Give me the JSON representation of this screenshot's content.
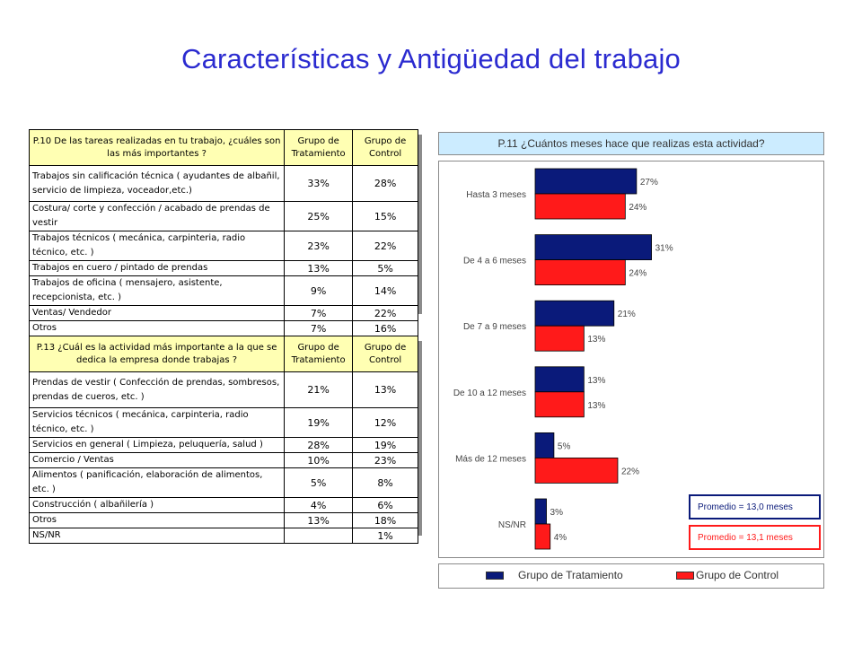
{
  "title": "Características y Antigüedad del trabajo",
  "table1": {
    "question": "P.10 De las tareas realizadas en tu trabajo, ¿cuáles son las más importantes ?",
    "col_tratamiento": "Grupo de Tratamiento",
    "col_control": "Grupo de Control",
    "rows": [
      {
        "label": "Trabajos sin calificación técnica ( ayudantes de albañil, servicio de limpieza, voceador,etc.)",
        "tratamiento": "33%",
        "control": "28%"
      },
      {
        "label": "Costura/ corte y confección / acabado de prendas de vestir",
        "tratamiento": "25%",
        "control": "15%"
      },
      {
        "label": "Trabajos técnicos ( mecánica, carpinteria, radio técnico, etc. )",
        "tratamiento": "23%",
        "control": "22%"
      },
      {
        "label": "Trabajos en cuero / pintado de prendas",
        "tratamiento": "13%",
        "control": "5%"
      },
      {
        "label": "Trabajos de oficina ( mensajero, asistente, recepcionista, etc. )",
        "tratamiento": "9%",
        "control": "14%"
      },
      {
        "label": "Ventas/ Vendedor",
        "tratamiento": "7%",
        "control": "22%"
      },
      {
        "label": "Otros",
        "tratamiento": "7%",
        "control": "16%"
      }
    ]
  },
  "table2": {
    "question": "P.13 ¿Cuál es la actividad más importante a la que se dedica la empresa donde trabajas ?",
    "col_tratamiento": "Grupo de Tratamiento",
    "col_control": "Grupo de Control",
    "rows": [
      {
        "label": "Prendas de vestir ( Confección de prendas, sombresos, prendas de cueros, etc. )",
        "tratamiento": "21%",
        "control": "13%"
      },
      {
        "label": "Servicios técnicos ( mecánica, carpinteria, radio técnico, etc. )",
        "tratamiento": "19%",
        "control": "12%"
      },
      {
        "label": "Servicios en general ( Limpieza, peluquería, salud )",
        "tratamiento": "28%",
        "control": "19%"
      },
      {
        "label": "Comercio / Ventas",
        "tratamiento": "10%",
        "control": "23%"
      },
      {
        "label": "Alimentos ( panificación, elaboración de alimentos, etc. )",
        "tratamiento": "5%",
        "control": "8%"
      },
      {
        "label": "Construcción ( albañilería )",
        "tratamiento": "4%",
        "control": "6%"
      },
      {
        "label": "Otros",
        "tratamiento": "13%",
        "control": "18%"
      },
      {
        "label": "NS/NR",
        "tratamiento": "",
        "control": "1%"
      }
    ]
  },
  "chart_data": {
    "type": "bar",
    "orientation": "horizontal",
    "title": "P.11 ¿Cuántos meses hace que realizas esta actividad?",
    "categories": [
      "Hasta 3 meses",
      "De 4 a 6 meses",
      "De 7 a 9 meses",
      "De 10 a 12 meses",
      "Más de 12 meses",
      "NS/NR"
    ],
    "series": [
      {
        "name": "Grupo de Tratamiento",
        "color": "#0a1a7a",
        "values": [
          27,
          31,
          21,
          13,
          5,
          3
        ]
      },
      {
        "name": "Grupo de Control",
        "color": "#ff1a1a",
        "values": [
          24,
          24,
          13,
          13,
          22,
          4
        ]
      }
    ],
    "value_suffix": "%",
    "xlim": [
      0,
      35
    ],
    "grid": false,
    "legend": "bottom",
    "annotations": [
      {
        "text": "Promedio = 13,0 meses",
        "color": "#0a1a7a"
      },
      {
        "text": "Promedio = 13,1 meses",
        "color": "#ff1a1a"
      }
    ]
  }
}
